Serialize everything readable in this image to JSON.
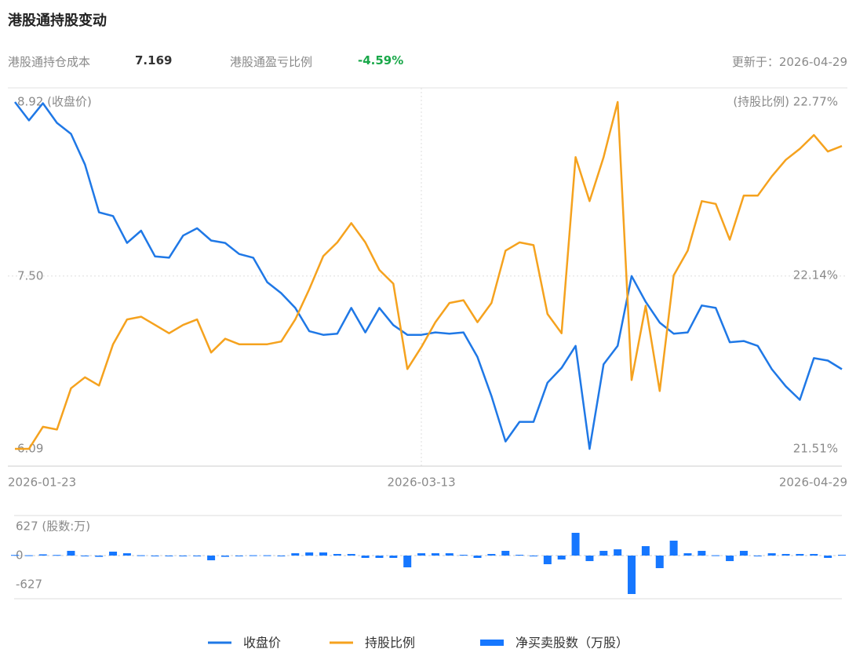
{
  "title": "港股通持股变动",
  "stats": [
    {
      "label": "港股通持仓成本",
      "value": "7.169"
    },
    {
      "label": "港股通盈亏比例",
      "value": "-4.59%"
    }
  ],
  "updated": "更新于：2026-04-29",
  "chart_data": [
    {
      "type": "line",
      "categories": [
        "2026-01-23",
        null,
        null,
        null,
        null,
        null,
        null,
        null,
        null,
        null,
        null,
        null,
        null,
        null,
        null,
        null,
        null,
        null,
        null,
        null,
        null,
        null,
        null,
        null,
        null,
        null,
        null,
        null,
        null,
        "2026-03-13",
        null,
        null,
        null,
        null,
        null,
        null,
        null,
        null,
        null,
        null,
        null,
        null,
        null,
        null,
        null,
        null,
        null,
        null,
        null,
        null,
        null,
        null,
        null,
        null,
        null,
        null,
        null,
        null,
        null,
        "2026-04-29"
      ],
      "ylim": [
        6.09,
        8.92
      ],
      "yticks": [
        {
          "value": 6.09,
          "label": "6.09"
        },
        {
          "value": 7.5,
          "label": "7.50"
        },
        {
          "value": 8.92,
          "label": "8.92 (收盘价)"
        }
      ],
      "y2lim": [
        21.51,
        22.77
      ],
      "y2ticks": [
        {
          "value": 21.51,
          "label": "21.51%"
        },
        {
          "value": 22.14,
          "label": "22.14%"
        },
        {
          "value": 22.77,
          "label": "(持股比例) 22.77%"
        }
      ],
      "series": [
        {
          "name": "收盘价",
          "color": "#1f78e6",
          "values": [
            8.92,
            8.77,
            8.91,
            8.75,
            8.66,
            8.41,
            8.02,
            7.99,
            7.77,
            7.87,
            7.66,
            7.65,
            7.83,
            7.89,
            7.79,
            7.77,
            7.68,
            7.65,
            7.45,
            7.36,
            7.24,
            7.05,
            7.02,
            7.03,
            7.24,
            7.04,
            7.24,
            7.1,
            7.02,
            7.02,
            7.04,
            7.03,
            7.04,
            6.84,
            6.52,
            6.15,
            6.31,
            6.31,
            6.63,
            6.75,
            6.93,
            6.09,
            6.78,
            6.93,
            7.5,
            7.29,
            7.12,
            7.03,
            7.04,
            7.26,
            7.24,
            6.96,
            6.97,
            6.93,
            6.74,
            6.6,
            6.49,
            6.83,
            6.81,
            6.74
          ]
        },
        {
          "name": "持股比例",
          "color": "#f5a21e",
          "axis": "y2",
          "values": [
            21.51,
            21.51,
            21.59,
            21.58,
            21.73,
            21.77,
            21.74,
            21.89,
            21.98,
            21.99,
            21.96,
            21.93,
            21.96,
            21.98,
            21.86,
            21.91,
            21.89,
            21.89,
            21.89,
            21.9,
            21.98,
            22.09,
            22.21,
            22.26,
            22.33,
            22.26,
            22.16,
            22.11,
            21.8,
            21.88,
            21.97,
            22.04,
            22.05,
            21.97,
            22.04,
            22.23,
            22.26,
            22.25,
            22.0,
            21.93,
            22.57,
            22.41,
            22.57,
            22.77,
            21.76,
            22.03,
            21.72,
            22.14,
            22.23,
            22.41,
            22.4,
            22.27,
            22.43,
            22.43,
            22.5,
            22.56,
            22.6,
            22.65,
            22.59,
            22.61
          ]
        }
      ]
    },
    {
      "type": "bar",
      "ylim": [
        -627,
        627
      ],
      "yticks": [
        {
          "value": 627,
          "label": "627 (股数:万)"
        },
        0,
        -627
      ],
      "series": [
        {
          "name": "净买卖股数（万股）",
          "color": "#1677ff",
          "values": [
            10,
            5,
            20,
            10,
            77,
            -13,
            -20,
            64,
            38,
            5,
            -10,
            -10,
            -10,
            -10,
            -77,
            -20,
            -10,
            5,
            5,
            -10,
            38,
            51,
            51,
            26,
            26,
            -38,
            -38,
            -38,
            -192,
            38,
            38,
            38,
            13,
            -38,
            26,
            77,
            13,
            -10,
            -141,
            -64,
            371,
            -90,
            77,
            102,
            -627,
            154,
            -205,
            243,
            38,
            77,
            5,
            -90,
            77,
            -10,
            38,
            26,
            26,
            26,
            -38,
            13
          ]
        }
      ]
    }
  ]
}
